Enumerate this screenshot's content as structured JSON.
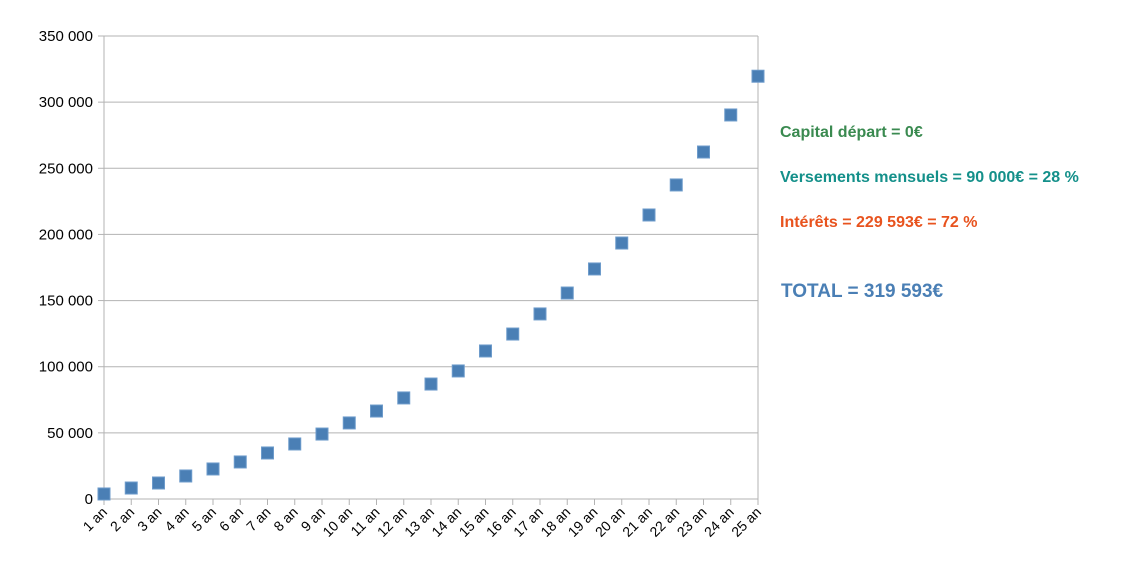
{
  "chart_data": {
    "type": "scatter",
    "title": "",
    "xlabel": "",
    "ylabel": "",
    "categories": [
      "1 an",
      "2 an",
      "3 an",
      "4 an",
      "5 an",
      "6 an",
      "7 an",
      "8 an",
      "9 an",
      "10 an",
      "11 an",
      "12 an",
      "13 an",
      "14 an",
      "15 an",
      "16 an",
      "17 an",
      "18 an",
      "19 an",
      "20 an",
      "21 an",
      "22 an",
      "23 an",
      "24 an",
      "25 an"
    ],
    "values": [
      3800,
      8300,
      12100,
      17400,
      22700,
      28000,
      34800,
      41600,
      49100,
      57500,
      66500,
      76400,
      86900,
      96800,
      111900,
      124700,
      139900,
      155700,
      173900,
      193500,
      214700,
      237400,
      262300,
      290300,
      319593
    ],
    "ylim": [
      0,
      350000
    ],
    "yticks": [
      0,
      50000,
      100000,
      150000,
      200000,
      250000,
      300000,
      350000
    ],
    "ytick_labels": [
      "0",
      "50 000",
      "100 000",
      "150 000",
      "200 000",
      "250 000",
      "300 000",
      "350 000"
    ],
    "grid": true,
    "marker_color": "#4a7fb5"
  },
  "annotations": [
    {
      "text": "Capital départ = 0€",
      "color": "#3a8a50"
    },
    {
      "text": "Versements mensuels = 90 000€ = 28 %",
      "color": "#14908a"
    },
    {
      "text": "Intérêts = 229 593€ = 72 %",
      "color": "#e8531e"
    },
    {
      "text": "TOTAL = 319 593€",
      "color": "#4a7fb5"
    }
  ]
}
